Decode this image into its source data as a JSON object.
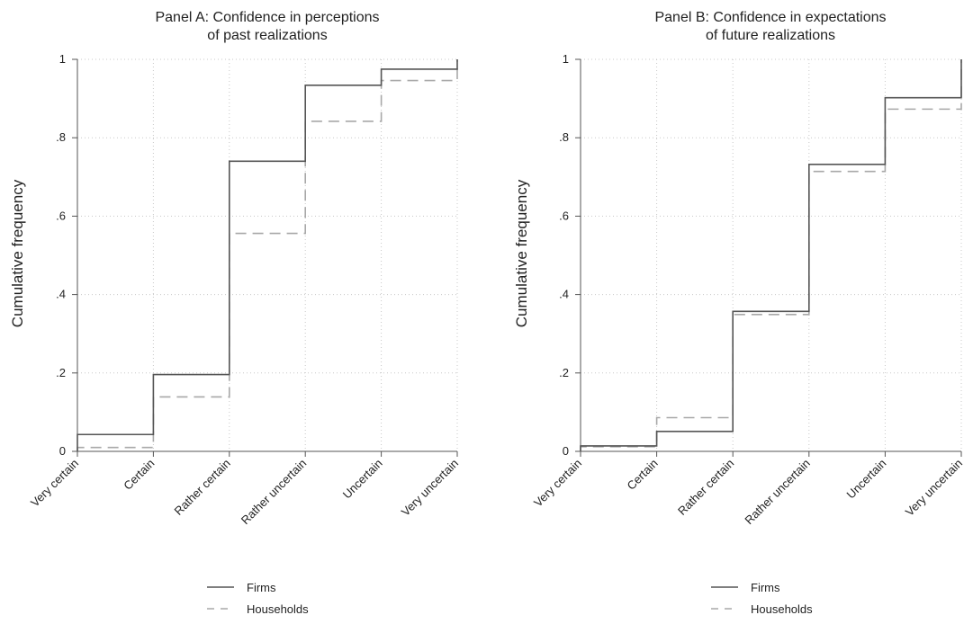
{
  "chart_data": [
    {
      "type": "line",
      "title": [
        "Panel A: Confidence in perceptions",
        "of past realizations"
      ],
      "xlabel": "",
      "ylabel": "Cumulative frequency",
      "categories": [
        "Very certain",
        "Certain",
        "Rather certain",
        "Rather uncertain",
        "Uncertain",
        "Very uncertain"
      ],
      "ylim": [
        0,
        1
      ],
      "yticks": [
        0,
        0.2,
        0.4,
        0.6,
        0.8,
        1
      ],
      "ytick_labels": [
        "0",
        ".2",
        ".4",
        ".6",
        ".8",
        "1"
      ],
      "grid": true,
      "series": [
        {
          "name": "Firms",
          "values": [
            0.043,
            0.196,
            0.74,
            0.934,
            0.975,
            1.0
          ]
        },
        {
          "name": "Households",
          "values": [
            0.01,
            0.139,
            0.556,
            0.842,
            0.946,
            1.0
          ]
        }
      ]
    },
    {
      "type": "line",
      "title": [
        "Panel B: Confidence in expectations",
        "of future realizations"
      ],
      "xlabel": "",
      "ylabel": "Cumulative frequency",
      "categories": [
        "Very certain",
        "Certain",
        "Rather certain",
        "Rather uncertain",
        "Uncertain",
        "Very uncertain"
      ],
      "ylim": [
        0,
        1
      ],
      "yticks": [
        0,
        0.2,
        0.4,
        0.6,
        0.8,
        1
      ],
      "ytick_labels": [
        "0",
        ".2",
        ".4",
        ".6",
        ".8",
        "1"
      ],
      "grid": true,
      "series": [
        {
          "name": "Firms",
          "values": [
            0.014,
            0.051,
            0.357,
            0.732,
            0.902,
            1.0
          ]
        },
        {
          "name": "Households",
          "values": [
            0.012,
            0.086,
            0.349,
            0.714,
            0.873,
            1.0
          ]
        }
      ]
    }
  ],
  "legend": {
    "position": "bottom",
    "items": [
      {
        "label": "Firms",
        "color": "#555555",
        "dash": "solid"
      },
      {
        "label": "Households",
        "color": "#a8a8a8",
        "dash": "dashed"
      }
    ]
  },
  "colors": {
    "firms": "#555555",
    "households": "#a8a8a8",
    "grid": "#c8c8c8",
    "axis": "#555555"
  }
}
